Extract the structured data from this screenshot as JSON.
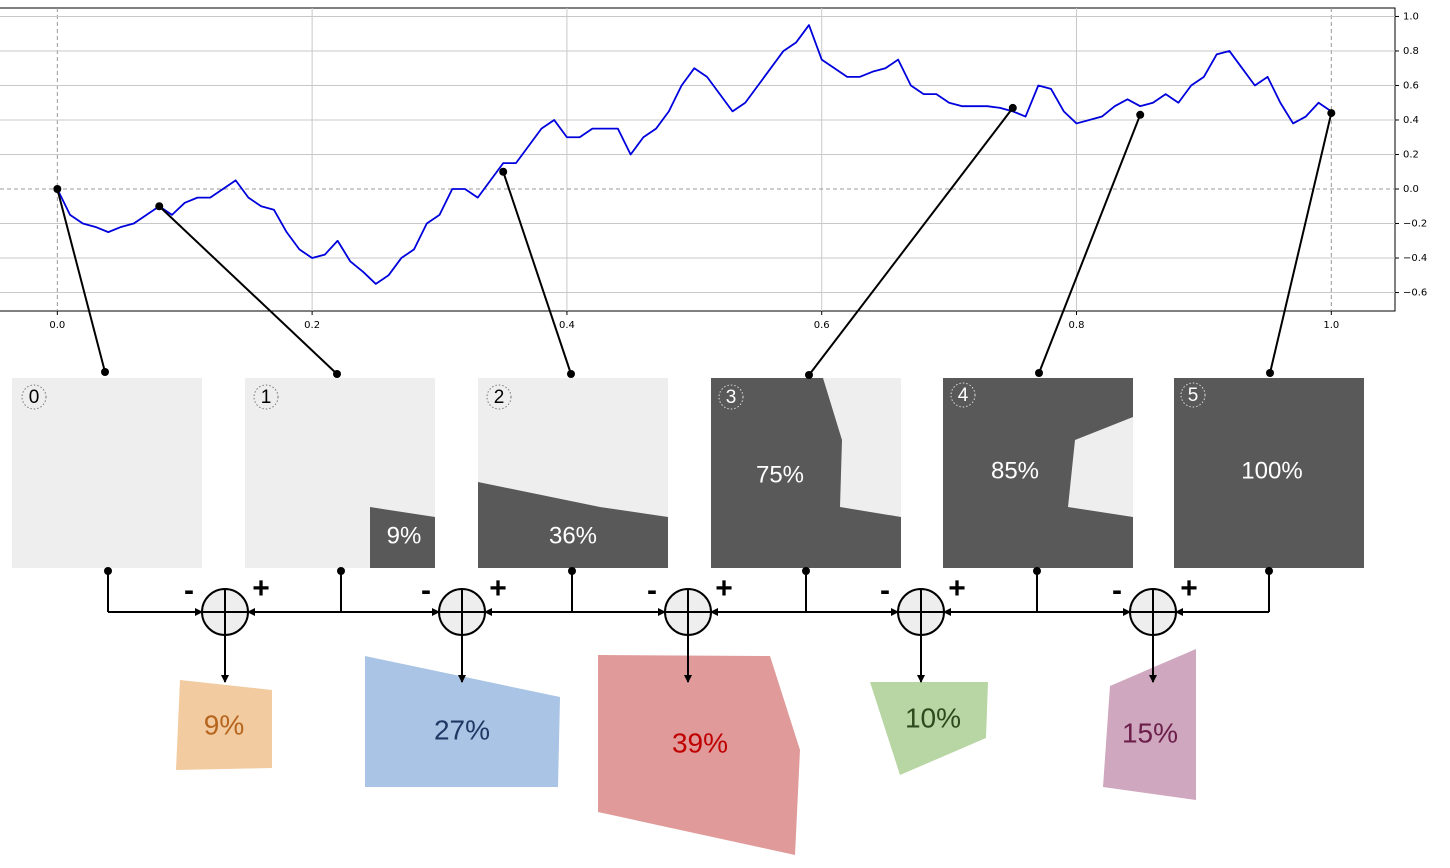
{
  "chart_data": {
    "type": "line",
    "xlim": [
      -0.045,
      1.05
    ],
    "ylim": [
      -0.707,
      1.049
    ],
    "xticks": [
      {
        "value": 0,
        "label": "0.0"
      },
      {
        "value": 0.2,
        "label": "0.2"
      },
      {
        "value": 0.4,
        "label": "0.4"
      },
      {
        "value": 0.6,
        "label": "0.6"
      },
      {
        "value": 0.8,
        "label": "0.8"
      },
      {
        "value": 1,
        "label": "1.0"
      }
    ],
    "yticks": [
      {
        "value": 1,
        "label": "1.0"
      },
      {
        "value": 0.8,
        "label": "0.8"
      },
      {
        "value": 0.6,
        "label": "0.6"
      },
      {
        "value": 0.4,
        "label": "0.4"
      },
      {
        "value": 0.2,
        "label": "0.2"
      },
      {
        "value": 0,
        "label": "0.0"
      },
      {
        "value": -0.2,
        "label": "−0.2"
      },
      {
        "value": -0.4,
        "label": "−0.4"
      },
      {
        "value": -0.6,
        "label": "−0.6"
      }
    ],
    "grid": true,
    "series": [
      {
        "color": "#0000dd",
        "x": [
          0,
          0.01,
          0.02,
          0.03,
          0.04,
          0.05,
          0.06,
          0.07,
          0.08,
          0.09,
          0.1,
          0.11,
          0.12,
          0.13,
          0.14,
          0.15,
          0.16,
          0.17,
          0.18,
          0.19,
          0.2,
          0.21,
          0.22,
          0.23,
          0.24,
          0.25,
          0.26,
          0.27,
          0.28,
          0.29,
          0.3,
          0.31,
          0.32,
          0.33,
          0.34,
          0.35,
          0.36,
          0.37,
          0.38,
          0.39,
          0.4,
          0.41,
          0.42,
          0.43,
          0.44,
          0.45,
          0.46,
          0.47,
          0.48,
          0.49,
          0.5,
          0.51,
          0.52,
          0.53,
          0.54,
          0.55,
          0.56,
          0.57,
          0.58,
          0.59,
          0.6,
          0.61,
          0.62,
          0.63,
          0.64,
          0.65,
          0.66,
          0.67,
          0.68,
          0.69,
          0.7,
          0.71,
          0.72,
          0.73,
          0.74,
          0.75,
          0.76,
          0.77,
          0.78,
          0.79,
          0.8,
          0.81,
          0.82,
          0.83,
          0.84,
          0.85,
          0.86,
          0.87,
          0.88,
          0.89,
          0.9,
          0.91,
          0.92,
          0.93,
          0.94,
          0.95,
          0.96,
          0.97,
          0.98,
          0.99,
          1
        ],
        "values": [
          0,
          -0.15,
          -0.2,
          -0.22,
          -0.25,
          -0.22,
          -0.2,
          -0.15,
          -0.1,
          -0.15,
          -0.08,
          -0.05,
          -0.05,
          0,
          0.05,
          -0.05,
          -0.1,
          -0.12,
          -0.25,
          -0.35,
          -0.4,
          -0.38,
          -0.3,
          -0.42,
          -0.48,
          -0.55,
          -0.5,
          -0.4,
          -0.35,
          -0.2,
          -0.15,
          0,
          0,
          -0.05,
          0.05,
          0.15,
          0.15,
          0.25,
          0.35,
          0.4,
          0.3,
          0.3,
          0.35,
          0.35,
          0.35,
          0.2,
          0.3,
          0.35,
          0.45,
          0.6,
          0.7,
          0.65,
          0.55,
          0.45,
          0.5,
          0.6,
          0.7,
          0.8,
          0.85,
          0.95,
          0.75,
          0.7,
          0.65,
          0.65,
          0.68,
          0.7,
          0.75,
          0.6,
          0.55,
          0.55,
          0.5,
          0.48,
          0.48,
          0.48,
          0.47,
          0.45,
          0.42,
          0.6,
          0.58,
          0.45,
          0.38,
          0.4,
          0.42,
          0.48,
          0.52,
          0.48,
          0.5,
          0.55,
          0.5,
          0.6,
          0.65,
          0.78,
          0.8,
          0.7,
          0.6,
          0.65,
          0.5,
          0.38,
          0.42,
          0.5,
          0.45
        ]
      }
    ],
    "markers": {
      "x": [
        0,
        0.08,
        0.35,
        0.75,
        0.85,
        1
      ],
      "values": [
        0,
        -0.1,
        0.1,
        0.47,
        0.43,
        0.44
      ]
    }
  },
  "panels": [
    {
      "label": "0"
    },
    {
      "label": "1",
      "fill": "9%"
    },
    {
      "label": "2",
      "fill": "36%"
    },
    {
      "label": "3",
      "fill": "75%"
    },
    {
      "label": "4",
      "fill": "85%"
    },
    {
      "label": "5",
      "fill": "100%"
    }
  ],
  "operators": {
    "minus": "-",
    "plus": "+"
  },
  "differences": [
    {
      "label": "9%"
    },
    {
      "label": "27%"
    },
    {
      "label": "39%"
    },
    {
      "label": "10%"
    },
    {
      "label": "15%"
    }
  ]
}
